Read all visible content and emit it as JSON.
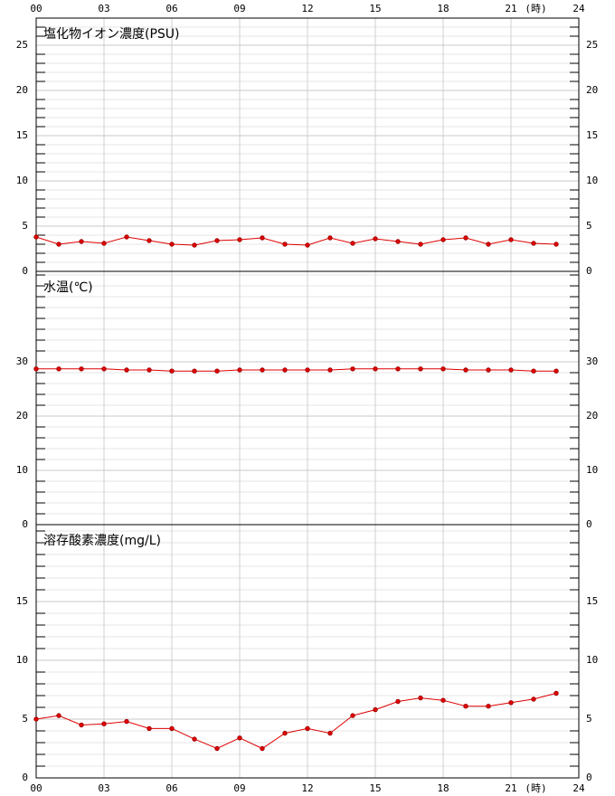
{
  "chart_data": [
    {
      "type": "line",
      "title": "塩化物イオン濃度(PSU)",
      "color": "#e00000",
      "x": [
        0,
        1,
        2,
        3,
        4,
        5,
        6,
        7,
        8,
        9,
        10,
        11,
        12,
        13,
        14,
        15,
        16,
        17,
        18,
        19,
        20,
        21,
        22,
        23
      ],
      "values": [
        3.8,
        3.0,
        3.3,
        3.1,
        3.8,
        3.4,
        3.0,
        2.9,
        3.4,
        3.5,
        3.7,
        3.0,
        2.9,
        3.7,
        3.1,
        3.6,
        3.3,
        3.0,
        3.5,
        3.7,
        3.0,
        3.5,
        3.1,
        3.0
      ],
      "xlim": [
        0,
        24
      ],
      "ylim": [
        0,
        28
      ],
      "yticks": [
        0,
        5,
        10,
        15,
        20,
        25
      ],
      "minor_tick_step": 1,
      "grid": true,
      "xticks": [
        {
          "value": 0,
          "label": "00"
        },
        {
          "value": 3,
          "label": "03"
        },
        {
          "value": 6,
          "label": "06"
        },
        {
          "value": 9,
          "label": "09"
        },
        12,
        15,
        18,
        21,
        24
      ],
      "x_unit": "(時)"
    },
    {
      "type": "line",
      "title": "水温(℃)",
      "color": "#e00000",
      "x": [
        0,
        1,
        2,
        3,
        4,
        5,
        6,
        7,
        8,
        9,
        10,
        11,
        12,
        13,
        14,
        15,
        16,
        17,
        18,
        19,
        20,
        21,
        22,
        23
      ],
      "values": [
        28.7,
        28.7,
        28.7,
        28.7,
        28.5,
        28.5,
        28.3,
        28.3,
        28.3,
        28.5,
        28.5,
        28.5,
        28.5,
        28.5,
        28.7,
        28.7,
        28.7,
        28.7,
        28.7,
        28.5,
        28.5,
        28.5,
        28.3,
        28.3
      ],
      "xlim": [
        0,
        24
      ],
      "ylim": [
        0,
        46.67
      ],
      "yticks": [
        0,
        10,
        20,
        30
      ],
      "minor_tick_step": 2,
      "grid": true
    },
    {
      "type": "line",
      "title": "溶存酸素濃度(mg/L)",
      "color": "#e00000",
      "x": [
        0,
        1,
        2,
        3,
        4,
        5,
        6,
        7,
        8,
        9,
        10,
        11,
        12,
        13,
        14,
        15,
        16,
        17,
        18,
        19,
        20,
        21,
        22,
        23
      ],
      "values": [
        5.0,
        5.3,
        4.5,
        4.6,
        4.8,
        4.2,
        4.2,
        3.3,
        2.5,
        3.4,
        2.5,
        3.8,
        4.2,
        3.8,
        5.3,
        5.8,
        6.5,
        6.8,
        6.6,
        6.1,
        6.1,
        6.4,
        6.7,
        7.2
      ],
      "xlim": [
        0,
        24
      ],
      "ylim": [
        0,
        21.54
      ],
      "yticks": [
        0,
        5,
        10,
        15
      ],
      "minor_tick_step": 1,
      "grid": true,
      "xticks": [
        {
          "value": 0,
          "label": "00"
        },
        {
          "value": 3,
          "label": "03"
        },
        {
          "value": 6,
          "label": "06"
        },
        {
          "value": 9,
          "label": "09"
        },
        12,
        15,
        18,
        21,
        24
      ],
      "x_unit": "(時)"
    }
  ]
}
